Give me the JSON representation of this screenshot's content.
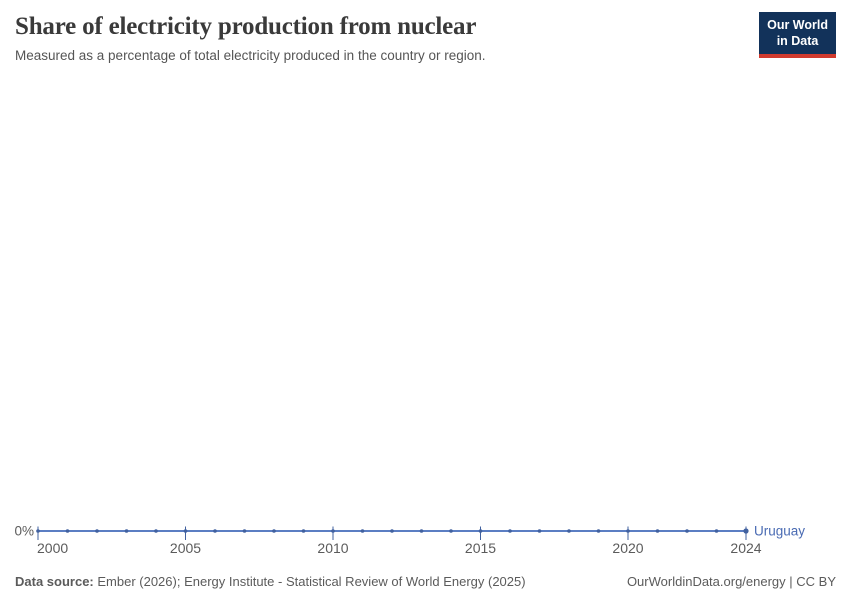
{
  "header": {
    "title": "Share of electricity production from nuclear",
    "subtitle": "Measured as a percentage of total electricity produced in the country or region.",
    "logo": {
      "line1": "Our World",
      "line2": "in Data",
      "bg_color": "#12325a",
      "accent_color": "#d03a2e"
    }
  },
  "chart_data": {
    "type": "line",
    "title": "Share of electricity production from nuclear",
    "xlabel": "",
    "ylabel": "",
    "x": [
      2000,
      2001,
      2002,
      2003,
      2004,
      2005,
      2006,
      2007,
      2008,
      2009,
      2010,
      2011,
      2012,
      2013,
      2014,
      2015,
      2016,
      2017,
      2018,
      2019,
      2020,
      2021,
      2022,
      2023,
      2024
    ],
    "series": [
      {
        "name": "Uruguay",
        "color": "#5b7ec3",
        "marker_color": "#41619f",
        "label_color": "#4a6bb3",
        "values": [
          0,
          0,
          0,
          0,
          0,
          0,
          0,
          0,
          0,
          0,
          0,
          0,
          0,
          0,
          0,
          0,
          0,
          0,
          0,
          0,
          0,
          0,
          0,
          0,
          0
        ]
      }
    ],
    "x_tick_labels": [
      "2000",
      "2005",
      "2010",
      "2015",
      "2020",
      "2024"
    ],
    "y_tick_labels": [
      "0%"
    ],
    "ylim": [
      0,
      100
    ],
    "grid": false,
    "legend_position": "end-of-line",
    "axis_text_color": "#5b5b5b",
    "tick_color": "#41619f"
  },
  "footer": {
    "datasource_label": "Data source:",
    "datasource_text": " Ember (2026); Energy Institute - Statistical Review of World Energy (2025)",
    "link_text": "OurWorldinData.org/energy | CC BY"
  }
}
